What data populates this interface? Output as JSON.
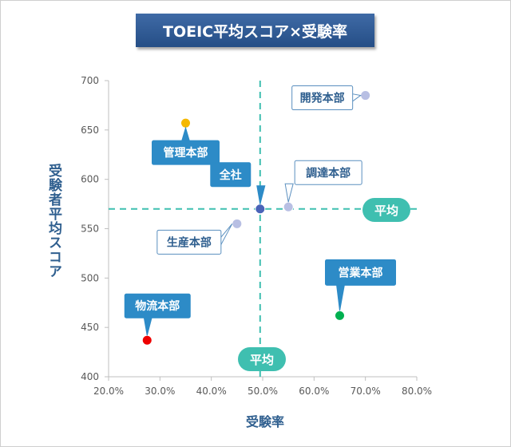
{
  "chart_data": {
    "type": "scatter",
    "title": "TOEIC平均スコア×受験率",
    "xlabel": "受験率",
    "ylabel": "受験者平均スコア",
    "xlim": [
      0.2,
      0.8
    ],
    "ylim": [
      400,
      700
    ],
    "x_ticks": [
      "20.0%",
      "30.0%",
      "40.0%",
      "50.0%",
      "60.0%",
      "70.0%",
      "80.0%"
    ],
    "y_ticks": [
      "400",
      "450",
      "500",
      "550",
      "600",
      "650",
      "700"
    ],
    "grid": false,
    "average": {
      "x": 0.495,
      "y": 570,
      "label": "平均"
    },
    "points": [
      {
        "name": "開発本部",
        "x": 0.7,
        "y": 685,
        "color": "#b8bfe3"
      },
      {
        "name": "管理本部",
        "x": 0.35,
        "y": 657,
        "color": "#f5b800"
      },
      {
        "name": "全社",
        "x": 0.495,
        "y": 570,
        "color": "#4a63b8"
      },
      {
        "name": "調達本部",
        "x": 0.55,
        "y": 572,
        "color": "#b8bfe3"
      },
      {
        "name": "生産本部",
        "x": 0.45,
        "y": 555,
        "color": "#b8bfe3"
      },
      {
        "name": "営業本部",
        "x": 0.65,
        "y": 462,
        "color": "#00b050"
      },
      {
        "name": "物流本部",
        "x": 0.275,
        "y": 437,
        "color": "#ee0000"
      }
    ]
  }
}
